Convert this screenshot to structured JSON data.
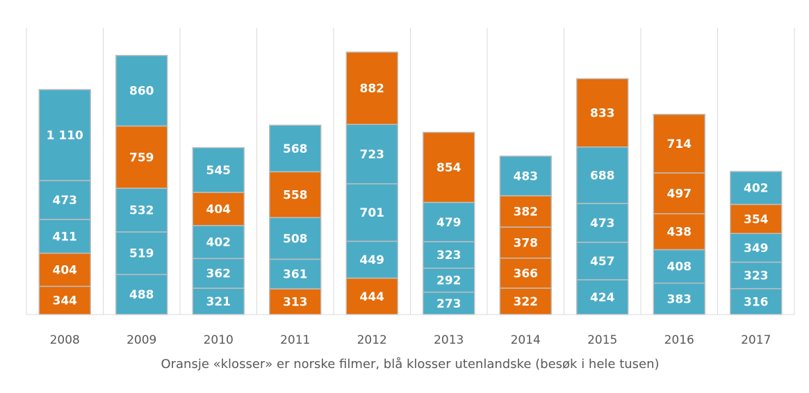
{
  "chart_data": {
    "type": "stacked_bar",
    "xlabel": "Oransje «klosser» er norske filmer, blå klosser utenlandske (besøk i hele tusen)",
    "categories": [
      "2008",
      "2009",
      "2010",
      "2011",
      "2012",
      "2013",
      "2014",
      "2015",
      "2016",
      "2017"
    ],
    "bars": [
      {
        "values": [
          344,
          404,
          411,
          473,
          1110
        ],
        "value_labels": [
          "344",
          "404",
          "411",
          "473",
          "1 110"
        ],
        "colors": [
          "#e46c0a",
          "#e46c0a",
          "#4bacc6",
          "#4bacc6",
          "#4bacc6"
        ]
      },
      {
        "values": [
          488,
          519,
          532,
          759,
          860
        ],
        "colors": [
          "#4bacc6",
          "#4bacc6",
          "#4bacc6",
          "#e46c0a",
          "#4bacc6"
        ]
      },
      {
        "values": [
          321,
          362,
          402,
          404,
          545
        ],
        "colors": [
          "#4bacc6",
          "#4bacc6",
          "#4bacc6",
          "#e46c0a",
          "#4bacc6"
        ]
      },
      {
        "values": [
          313,
          361,
          508,
          558,
          568
        ],
        "colors": [
          "#e46c0a",
          "#4bacc6",
          "#4bacc6",
          "#e46c0a",
          "#4bacc6"
        ]
      },
      {
        "values": [
          444,
          449,
          701,
          723,
          882
        ],
        "colors": [
          "#e46c0a",
          "#4bacc6",
          "#4bacc6",
          "#4bacc6",
          "#e46c0a"
        ]
      },
      {
        "values": [
          273,
          292,
          323,
          479,
          854
        ],
        "colors": [
          "#4bacc6",
          "#4bacc6",
          "#4bacc6",
          "#4bacc6",
          "#e46c0a"
        ]
      },
      {
        "values": [
          322,
          366,
          378,
          382,
          483
        ],
        "colors": [
          "#e46c0a",
          "#e46c0a",
          "#e46c0a",
          "#e46c0a",
          "#4bacc6"
        ]
      },
      {
        "values": [
          424,
          457,
          473,
          688,
          833
        ],
        "colors": [
          "#4bacc6",
          "#4bacc6",
          "#4bacc6",
          "#4bacc6",
          "#e46c0a"
        ]
      },
      {
        "values": [
          383,
          408,
          438,
          497,
          714
        ],
        "colors": [
          "#4bacc6",
          "#4bacc6",
          "#e46c0a",
          "#e46c0a",
          "#e46c0a"
        ]
      },
      {
        "values": [
          316,
          323,
          349,
          354,
          402
        ],
        "colors": [
          "#4bacc6",
          "#4bacc6",
          "#4bacc6",
          "#e46c0a",
          "#4bacc6"
        ]
      }
    ],
    "grid": true
  }
}
